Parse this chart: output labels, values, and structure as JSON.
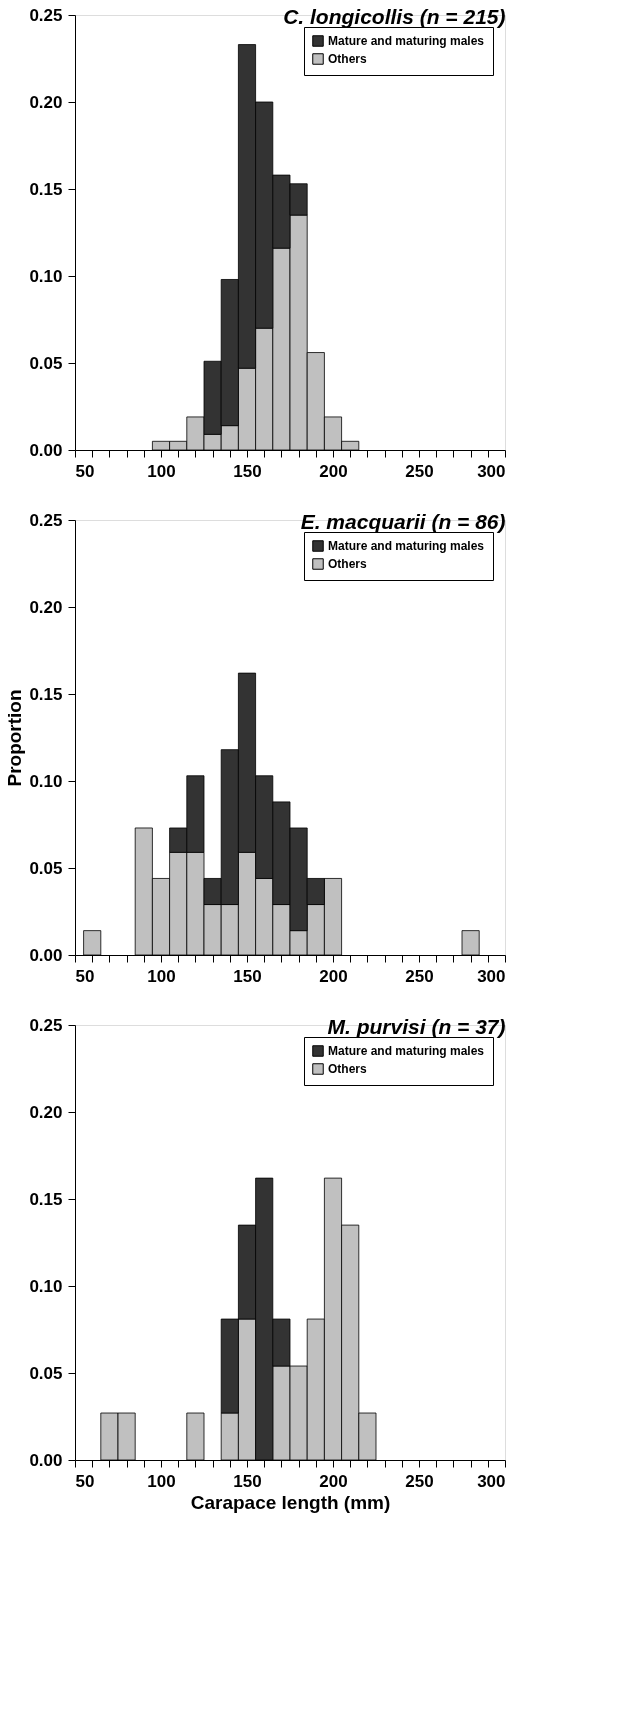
{
  "chart_data": [
    {
      "type": "bar",
      "title": "C. longicollis (n = 215)",
      "stacked": true,
      "legend": "top right",
      "grid": false,
      "x": [
        100,
        110,
        120,
        130,
        140,
        150,
        160,
        170,
        180,
        190,
        200,
        210
      ],
      "series": [
        {
          "name": "Others",
          "color": "#c0c0c0",
          "values": [
            0.005,
            0.005,
            0.019,
            0.009,
            0.014,
            0.047,
            0.07,
            0.116,
            0.135,
            0.056,
            0.019,
            0.005
          ]
        },
        {
          "name": "Mature and maturing males",
          "color": "#333333",
          "values": [
            null,
            null,
            null,
            0.042,
            0.084,
            0.186,
            0.13,
            0.042,
            0.018,
            null,
            null,
            null
          ]
        }
      ],
      "xlim": [
        50,
        300
      ],
      "ylim": [
        0,
        0.25
      ],
      "xticks": [
        50,
        {
          "value": 60,
          "label": null
        },
        {
          "value": 70,
          "label": null
        },
        {
          "value": 80,
          "label": null
        },
        {
          "value": 90,
          "label": null
        },
        100,
        {
          "value": 110,
          "label": null
        },
        {
          "value": 120,
          "label": null
        },
        {
          "value": 130,
          "label": null
        },
        {
          "value": 140,
          "label": null
        },
        150,
        {
          "value": 160,
          "label": null
        },
        {
          "value": 170,
          "label": null
        },
        {
          "value": 180,
          "label": null
        },
        {
          "value": 190,
          "label": null
        },
        200,
        {
          "value": 210,
          "label": null
        },
        {
          "value": 220,
          "label": null
        },
        {
          "value": 230,
          "label": null
        },
        {
          "value": 240,
          "label": null
        },
        250,
        {
          "value": 260,
          "label": null
        },
        {
          "value": 270,
          "label": null
        },
        {
          "value": 280,
          "label": null
        },
        {
          "value": 290,
          "label": null
        },
        300
      ],
      "yticks": [
        {
          "value": 0,
          "label": "0.00"
        },
        {
          "value": 0.05,
          "label": "0.05"
        },
        {
          "value": 0.1,
          "label": "0.10"
        },
        {
          "value": 0.15,
          "label": "0.15"
        },
        {
          "value": 0.2,
          "label": "0.20"
        },
        {
          "value": 0.25,
          "label": "0.25"
        }
      ]
    },
    {
      "type": "bar",
      "title": "E. macquarii (n = 86)",
      "ylabel": "Proportion",
      "stacked": true,
      "legend": "top right",
      "grid": false,
      "x": [
        60,
        70,
        80,
        90,
        100,
        110,
        120,
        130,
        140,
        150,
        160,
        170,
        180,
        190,
        200,
        210,
        220,
        230,
        240,
        250,
        260,
        270,
        280
      ],
      "series": [
        {
          "name": "Others",
          "color": "#c0c0c0",
          "values": [
            0.014,
            null,
            null,
            0.073,
            0.044,
            0.059,
            0.059,
            0.029,
            0.029,
            0.059,
            0.044,
            0.029,
            0.014,
            0.029,
            0.044,
            null,
            null,
            null,
            null,
            null,
            null,
            null,
            0.014
          ]
        },
        {
          "name": "Mature and maturing males",
          "color": "#333333",
          "values": [
            null,
            null,
            null,
            null,
            null,
            0.014,
            0.044,
            0.015,
            0.089,
            0.103,
            0.059,
            0.059,
            0.059,
            0.015,
            null,
            null,
            null,
            null,
            null,
            null,
            null,
            null,
            null
          ]
        }
      ],
      "xlim": [
        50,
        300
      ],
      "ylim": [
        0,
        0.25
      ],
      "xticks": [
        50,
        {
          "value": 60,
          "label": null
        },
        {
          "value": 70,
          "label": null
        },
        {
          "value": 80,
          "label": null
        },
        {
          "value": 90,
          "label": null
        },
        100,
        {
          "value": 110,
          "label": null
        },
        {
          "value": 120,
          "label": null
        },
        {
          "value": 130,
          "label": null
        },
        {
          "value": 140,
          "label": null
        },
        150,
        {
          "value": 160,
          "label": null
        },
        {
          "value": 170,
          "label": null
        },
        {
          "value": 180,
          "label": null
        },
        {
          "value": 190,
          "label": null
        },
        200,
        {
          "value": 210,
          "label": null
        },
        {
          "value": 220,
          "label": null
        },
        {
          "value": 230,
          "label": null
        },
        {
          "value": 240,
          "label": null
        },
        250,
        {
          "value": 260,
          "label": null
        },
        {
          "value": 270,
          "label": null
        },
        {
          "value": 280,
          "label": null
        },
        {
          "value": 290,
          "label": null
        },
        300
      ],
      "yticks": [
        {
          "value": 0,
          "label": "0.00"
        },
        {
          "value": 0.05,
          "label": "0.05"
        },
        {
          "value": 0.1,
          "label": "0.10"
        },
        {
          "value": 0.15,
          "label": "0.15"
        },
        {
          "value": 0.2,
          "label": "0.20"
        },
        {
          "value": 0.25,
          "label": "0.25"
        }
      ]
    },
    {
      "type": "bar",
      "title": "M. purvisi (n = 37)",
      "xlabel": "Carapace length (mm)",
      "stacked": true,
      "legend": "top right",
      "grid": false,
      "x": [
        70,
        80,
        90,
        100,
        110,
        120,
        130,
        140,
        150,
        160,
        170,
        180,
        190,
        200,
        210,
        220
      ],
      "series": [
        {
          "name": "Others",
          "color": "#c0c0c0",
          "values": [
            0.027,
            0.027,
            null,
            null,
            null,
            0.027,
            null,
            0.027,
            0.081,
            null,
            0.054,
            0.054,
            0.081,
            0.162,
            0.135,
            0.027
          ]
        },
        {
          "name": "Mature and maturing males",
          "color": "#333333",
          "values": [
            null,
            null,
            null,
            null,
            null,
            null,
            null,
            0.054,
            0.054,
            0.162,
            0.027,
            null,
            null,
            null,
            null,
            null
          ]
        }
      ],
      "xlim": [
        50,
        300
      ],
      "ylim": [
        0,
        0.25
      ],
      "xticks": [
        50,
        {
          "value": 60,
          "label": null
        },
        {
          "value": 70,
          "label": null
        },
        {
          "value": 80,
          "label": null
        },
        {
          "value": 90,
          "label": null
        },
        100,
        {
          "value": 110,
          "label": null
        },
        {
          "value": 120,
          "label": null
        },
        {
          "value": 130,
          "label": null
        },
        {
          "value": 140,
          "label": null
        },
        150,
        {
          "value": 160,
          "label": null
        },
        {
          "value": 170,
          "label": null
        },
        {
          "value": 180,
          "label": null
        },
        {
          "value": 190,
          "label": null
        },
        200,
        {
          "value": 210,
          "label": null
        },
        {
          "value": 220,
          "label": null
        },
        {
          "value": 230,
          "label": null
        },
        {
          "value": 240,
          "label": null
        },
        250,
        {
          "value": 260,
          "label": null
        },
        {
          "value": 270,
          "label": null
        },
        {
          "value": 280,
          "label": null
        },
        {
          "value": 290,
          "label": null
        },
        300
      ],
      "yticks": [
        {
          "value": 0,
          "label": "0.00"
        },
        {
          "value": 0.05,
          "label": "0.05"
        },
        {
          "value": 0.1,
          "label": "0.10"
        },
        {
          "value": 0.15,
          "label": "0.15"
        },
        {
          "value": 0.2,
          "label": "0.20"
        },
        {
          "value": 0.25,
          "label": "0.25"
        }
      ]
    }
  ]
}
